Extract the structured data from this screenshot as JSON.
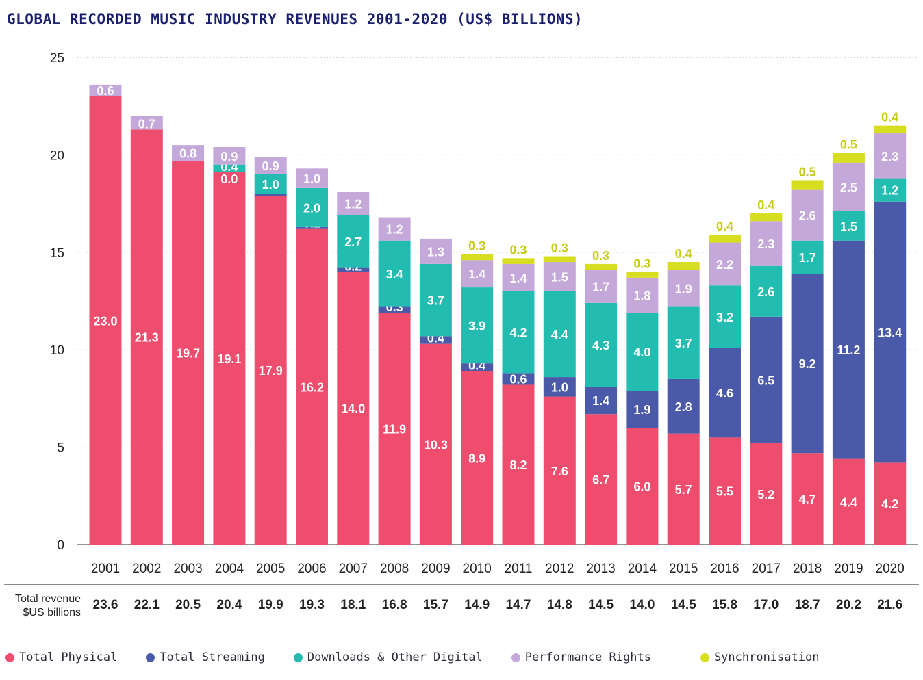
{
  "title": "GLOBAL RECORDED MUSIC INDUSTRY REVENUES 2001-2020 (US$ BILLIONS)",
  "total_row_label": [
    "Total revenue",
    "$US billions"
  ],
  "colors": {
    "physical": "#ee4d6d",
    "streaming": "#4a5aa8",
    "downloads": "#22bdb0",
    "performance": "#c4a8d9",
    "sync": "#d7dd1f",
    "title": "#1a1f6e"
  },
  "legend": [
    {
      "key": "physical",
      "label": "Total Physical",
      "color": "#ee4d6d"
    },
    {
      "key": "streaming",
      "label": "Total Streaming",
      "color": "#4a5aa8"
    },
    {
      "key": "downloads",
      "label": "Downloads & Other Digital",
      "color": "#22bdb0"
    },
    {
      "key": "performance",
      "label": "Performance Rights",
      "color": "#c4a8d9"
    },
    {
      "key": "sync",
      "label": "Synchronisation",
      "color": "#d7dd1f"
    }
  ],
  "chart_data": {
    "type": "bar",
    "stacked": true,
    "title": "GLOBAL RECORDED MUSIC INDUSTRY REVENUES 2001-2020 (US$ BILLIONS)",
    "categories": [
      "2001",
      "2002",
      "2003",
      "2004",
      "2005",
      "2006",
      "2007",
      "2008",
      "2009",
      "2010",
      "2011",
      "2012",
      "2013",
      "2014",
      "2015",
      "2016",
      "2017",
      "2018",
      "2019",
      "2020"
    ],
    "ylim": [
      0,
      25
    ],
    "yticks": [
      0,
      5,
      10,
      15,
      20,
      25
    ],
    "grid": "horizontal-dotted",
    "legend_position": "bottom",
    "series": [
      {
        "key": "physical",
        "name": "Total Physical",
        "values": [
          23.0,
          21.3,
          19.7,
          19.1,
          17.9,
          16.2,
          14.0,
          11.9,
          10.3,
          8.9,
          8.2,
          7.6,
          6.7,
          6.0,
          5.7,
          5.5,
          5.2,
          4.7,
          4.4,
          4.2
        ]
      },
      {
        "key": "streaming",
        "name": "Total Streaming",
        "values": [
          null,
          null,
          null,
          0.0,
          0.1,
          0.1,
          0.2,
          0.3,
          0.4,
          0.4,
          0.6,
          1.0,
          1.4,
          1.9,
          2.8,
          4.6,
          6.5,
          9.2,
          11.2,
          13.4
        ]
      },
      {
        "key": "downloads",
        "name": "Downloads & Other Digital",
        "values": [
          null,
          null,
          null,
          0.4,
          1.0,
          2.0,
          2.7,
          3.4,
          3.7,
          3.9,
          4.2,
          4.4,
          4.3,
          4.0,
          3.7,
          3.2,
          2.6,
          1.7,
          1.5,
          1.2
        ]
      },
      {
        "key": "performance",
        "name": "Performance Rights",
        "values": [
          0.6,
          0.7,
          0.8,
          0.9,
          0.9,
          1.0,
          1.2,
          1.2,
          1.3,
          1.4,
          1.4,
          1.5,
          1.7,
          1.8,
          1.9,
          2.2,
          2.3,
          2.6,
          2.5,
          2.3
        ]
      },
      {
        "key": "sync",
        "name": "Synchronisation",
        "values": [
          null,
          null,
          null,
          null,
          null,
          null,
          null,
          null,
          null,
          0.3,
          0.3,
          0.3,
          0.3,
          0.3,
          0.4,
          0.4,
          0.4,
          0.5,
          0.5,
          0.4
        ]
      }
    ],
    "totals": [
      23.6,
      22.1,
      20.5,
      20.4,
      19.9,
      19.3,
      18.1,
      16.8,
      15.7,
      14.9,
      14.7,
      14.8,
      14.5,
      14.0,
      14.5,
      15.8,
      17.0,
      18.7,
      20.2,
      21.6
    ]
  }
}
